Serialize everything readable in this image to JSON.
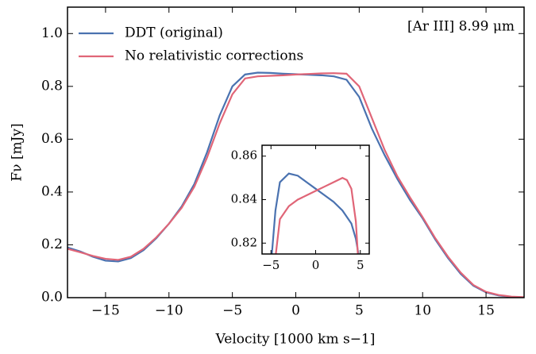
{
  "chart_data": [
    {
      "type": "line",
      "annotation": "[Ar III] 8.99 μm",
      "x_label": "Velocity [1000 km s−1]",
      "y_label": "Fν [mJy]",
      "xlim": [
        -18,
        18
      ],
      "ylim": [
        0,
        1.1
      ],
      "xticks": [
        {
          "value": -15,
          "label": "−15"
        },
        {
          "value": -10,
          "label": "−10"
        },
        {
          "value": -5,
          "label": "−5"
        },
        0,
        5,
        10,
        15
      ],
      "yticks": [
        {
          "value": 0,
          "label": "0.0"
        },
        0.2,
        0.4,
        0.6,
        0.8,
        {
          "value": 1,
          "label": "1.0"
        }
      ],
      "legend": "upper left",
      "series": [
        {
          "name": "DDT (original)",
          "color": "#4a72b0",
          "x": [
            -18,
            -17,
            -16,
            -15,
            -14,
            -13,
            -12,
            -11,
            -10,
            -9,
            -8,
            -7,
            -6,
            -5,
            -4,
            -3,
            -2,
            -1,
            0,
            1,
            2,
            3,
            4,
            5,
            6,
            7,
            8,
            9,
            10,
            11,
            12,
            13,
            14,
            15,
            16,
            17,
            18
          ],
          "values": [
            0.19,
            0.175,
            0.155,
            0.14,
            0.137,
            0.15,
            0.18,
            0.225,
            0.28,
            0.345,
            0.43,
            0.55,
            0.69,
            0.8,
            0.845,
            0.852,
            0.851,
            0.848,
            0.846,
            0.844,
            0.842,
            0.838,
            0.825,
            0.76,
            0.64,
            0.54,
            0.45,
            0.37,
            0.3,
            0.22,
            0.15,
            0.09,
            0.045,
            0.02,
            0.008,
            0.003,
            0.001
          ]
        },
        {
          "name": "No relativistic corrections",
          "color": "#e06577",
          "x": [
            -18,
            -17,
            -16,
            -15,
            -14,
            -13,
            -12,
            -11,
            -10,
            -9,
            -8,
            -7,
            -6,
            -5,
            -4,
            -3,
            -2,
            -1,
            0,
            1,
            2,
            3,
            4,
            5,
            6,
            7,
            8,
            9,
            10,
            11,
            12,
            13,
            14,
            15,
            16,
            17,
            18
          ],
          "values": [
            0.185,
            0.172,
            0.158,
            0.147,
            0.143,
            0.155,
            0.185,
            0.228,
            0.28,
            0.34,
            0.42,
            0.53,
            0.66,
            0.77,
            0.83,
            0.838,
            0.84,
            0.842,
            0.845,
            0.847,
            0.849,
            0.85,
            0.848,
            0.8,
            0.68,
            0.56,
            0.46,
            0.38,
            0.305,
            0.225,
            0.155,
            0.095,
            0.048,
            0.022,
            0.01,
            0.004,
            0.002
          ]
        }
      ]
    },
    {
      "type": "line",
      "xlim": [
        -6,
        6
      ],
      "ylim": [
        0.815,
        0.865
      ],
      "xticks": [
        {
          "value": -5,
          "label": "−5"
        },
        0,
        5
      ],
      "yticks": [
        0.82,
        0.84,
        0.86
      ],
      "series": [
        {
          "color": "#4a72b0",
          "x": [
            -5,
            -4.5,
            -4,
            -3,
            -2,
            -1,
            0,
            1,
            2,
            3,
            4,
            4.5,
            5
          ],
          "values": [
            0.81,
            0.835,
            0.848,
            0.852,
            0.851,
            0.848,
            0.845,
            0.842,
            0.839,
            0.835,
            0.829,
            0.822,
            0.81
          ]
        },
        {
          "color": "#e06577",
          "x": [
            -4.6,
            -4,
            -3,
            -2,
            -1,
            0,
            1,
            2,
            3,
            3.5,
            4,
            4.5,
            4.8
          ],
          "values": [
            0.81,
            0.831,
            0.837,
            0.84,
            0.842,
            0.844,
            0.846,
            0.848,
            0.85,
            0.849,
            0.845,
            0.83,
            0.81
          ]
        }
      ]
    }
  ]
}
